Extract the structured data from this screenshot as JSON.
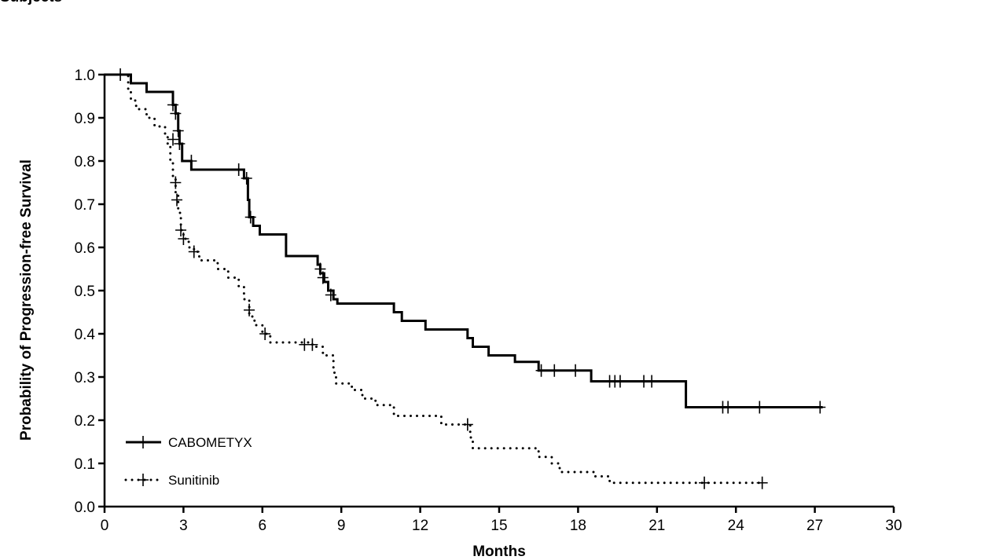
{
  "figure": {
    "title": "Subjects"
  },
  "chart_data": {
    "type": "line",
    "subtype": "kaplan-meier",
    "xlabel": "Months",
    "ylabel": "Probability of Progression-free Survival",
    "xlim": [
      0,
      30
    ],
    "ylim": [
      0,
      1.0
    ],
    "x_ticks": [
      0,
      3,
      6,
      9,
      12,
      15,
      18,
      21,
      24,
      27,
      30
    ],
    "y_ticks": [
      0.0,
      0.1,
      0.2,
      0.3,
      0.4,
      0.5,
      0.6,
      0.7,
      0.8,
      0.9,
      1.0
    ],
    "x_tick_labels": [
      "0",
      "3",
      "6",
      "9",
      "12",
      "15",
      "18",
      "21",
      "24",
      "27",
      "30"
    ],
    "y_tick_labels": [
      "0.0",
      "0.1",
      "0.2",
      "0.3",
      "0.4",
      "0.5",
      "0.6",
      "0.7",
      "0.8",
      "0.9",
      "1.0"
    ],
    "grid": false,
    "legend_position": "bottom-left",
    "series": [
      {
        "name": "CABOMETYX",
        "line_style": "solid",
        "color": "#000000",
        "steps": [
          [
            0,
            1.0
          ],
          [
            1.0,
            1.0
          ],
          [
            1.0,
            0.98
          ],
          [
            1.6,
            0.98
          ],
          [
            1.6,
            0.96
          ],
          [
            2.6,
            0.96
          ],
          [
            2.6,
            0.93
          ],
          [
            2.7,
            0.93
          ],
          [
            2.7,
            0.91
          ],
          [
            2.8,
            0.91
          ],
          [
            2.8,
            0.87
          ],
          [
            2.85,
            0.87
          ],
          [
            2.85,
            0.84
          ],
          [
            2.95,
            0.84
          ],
          [
            2.95,
            0.8
          ],
          [
            3.3,
            0.8
          ],
          [
            3.3,
            0.78
          ],
          [
            5.3,
            0.78
          ],
          [
            5.3,
            0.76
          ],
          [
            5.45,
            0.76
          ],
          [
            5.45,
            0.71
          ],
          [
            5.5,
            0.71
          ],
          [
            5.5,
            0.67
          ],
          [
            5.65,
            0.67
          ],
          [
            5.65,
            0.65
          ],
          [
            5.9,
            0.65
          ],
          [
            5.9,
            0.63
          ],
          [
            6.9,
            0.63
          ],
          [
            6.9,
            0.58
          ],
          [
            8.1,
            0.58
          ],
          [
            8.1,
            0.56
          ],
          [
            8.2,
            0.56
          ],
          [
            8.2,
            0.54
          ],
          [
            8.35,
            0.54
          ],
          [
            8.35,
            0.52
          ],
          [
            8.5,
            0.52
          ],
          [
            8.5,
            0.5
          ],
          [
            8.7,
            0.5
          ],
          [
            8.7,
            0.48
          ],
          [
            8.85,
            0.48
          ],
          [
            8.85,
            0.47
          ],
          [
            11.0,
            0.47
          ],
          [
            11.0,
            0.45
          ],
          [
            11.3,
            0.45
          ],
          [
            11.3,
            0.43
          ],
          [
            12.2,
            0.43
          ],
          [
            12.2,
            0.41
          ],
          [
            13.8,
            0.41
          ],
          [
            13.8,
            0.39
          ],
          [
            14.0,
            0.39
          ],
          [
            14.0,
            0.37
          ],
          [
            14.6,
            0.37
          ],
          [
            14.6,
            0.35
          ],
          [
            15.6,
            0.35
          ],
          [
            15.6,
            0.335
          ],
          [
            16.5,
            0.335
          ],
          [
            16.5,
            0.315
          ],
          [
            18.5,
            0.315
          ],
          [
            18.5,
            0.29
          ],
          [
            22.1,
            0.29
          ],
          [
            22.1,
            0.23
          ],
          [
            27.3,
            0.23
          ]
        ],
        "censored": [
          [
            0.6,
            1.0
          ],
          [
            2.6,
            0.93
          ],
          [
            2.7,
            0.91
          ],
          [
            2.8,
            0.87
          ],
          [
            2.85,
            0.84
          ],
          [
            3.3,
            0.8
          ],
          [
            5.1,
            0.78
          ],
          [
            5.4,
            0.76
          ],
          [
            5.55,
            0.67
          ],
          [
            8.2,
            0.55
          ],
          [
            8.3,
            0.53
          ],
          [
            8.6,
            0.49
          ],
          [
            16.6,
            0.315
          ],
          [
            17.1,
            0.315
          ],
          [
            17.9,
            0.315
          ],
          [
            19.2,
            0.29
          ],
          [
            19.4,
            0.29
          ],
          [
            19.6,
            0.29
          ],
          [
            20.5,
            0.29
          ],
          [
            20.8,
            0.29
          ],
          [
            23.5,
            0.23
          ],
          [
            23.7,
            0.23
          ],
          [
            24.9,
            0.23
          ],
          [
            27.2,
            0.23
          ]
        ]
      },
      {
        "name": "Sunitinib",
        "line_style": "dotted",
        "color": "#000000",
        "steps": [
          [
            0,
            1.0
          ],
          [
            0.9,
            1.0
          ],
          [
            0.9,
            0.96
          ],
          [
            1.0,
            0.96
          ],
          [
            1.0,
            0.94
          ],
          [
            1.2,
            0.94
          ],
          [
            1.2,
            0.92
          ],
          [
            1.6,
            0.92
          ],
          [
            1.6,
            0.9
          ],
          [
            1.9,
            0.9
          ],
          [
            1.9,
            0.88
          ],
          [
            2.3,
            0.88
          ],
          [
            2.3,
            0.86
          ],
          [
            2.4,
            0.86
          ],
          [
            2.4,
            0.84
          ],
          [
            2.5,
            0.84
          ],
          [
            2.5,
            0.8
          ],
          [
            2.6,
            0.8
          ],
          [
            2.6,
            0.76
          ],
          [
            2.7,
            0.76
          ],
          [
            2.7,
            0.72
          ],
          [
            2.8,
            0.72
          ],
          [
            2.8,
            0.68
          ],
          [
            2.9,
            0.68
          ],
          [
            2.9,
            0.64
          ],
          [
            3.0,
            0.64
          ],
          [
            3.0,
            0.62
          ],
          [
            3.2,
            0.62
          ],
          [
            3.2,
            0.6
          ],
          [
            3.4,
            0.6
          ],
          [
            3.4,
            0.59
          ],
          [
            3.6,
            0.59
          ],
          [
            3.6,
            0.57
          ],
          [
            4.3,
            0.57
          ],
          [
            4.3,
            0.55
          ],
          [
            4.7,
            0.55
          ],
          [
            4.7,
            0.53
          ],
          [
            5.1,
            0.53
          ],
          [
            5.1,
            0.51
          ],
          [
            5.3,
            0.51
          ],
          [
            5.3,
            0.48
          ],
          [
            5.5,
            0.48
          ],
          [
            5.5,
            0.44
          ],
          [
            5.7,
            0.44
          ],
          [
            5.7,
            0.42
          ],
          [
            6.0,
            0.42
          ],
          [
            6.0,
            0.4
          ],
          [
            6.3,
            0.4
          ],
          [
            6.3,
            0.38
          ],
          [
            7.9,
            0.38
          ],
          [
            7.9,
            0.37
          ],
          [
            8.3,
            0.37
          ],
          [
            8.3,
            0.35
          ],
          [
            8.7,
            0.35
          ],
          [
            8.7,
            0.31
          ],
          [
            8.8,
            0.31
          ],
          [
            8.8,
            0.285
          ],
          [
            9.4,
            0.285
          ],
          [
            9.4,
            0.27
          ],
          [
            9.8,
            0.27
          ],
          [
            9.8,
            0.25
          ],
          [
            10.3,
            0.25
          ],
          [
            10.3,
            0.235
          ],
          [
            11.0,
            0.235
          ],
          [
            11.0,
            0.21
          ],
          [
            12.8,
            0.21
          ],
          [
            12.8,
            0.19
          ],
          [
            13.9,
            0.19
          ],
          [
            13.9,
            0.16
          ],
          [
            14.0,
            0.16
          ],
          [
            14.0,
            0.135
          ],
          [
            16.5,
            0.135
          ],
          [
            16.5,
            0.115
          ],
          [
            17.0,
            0.115
          ],
          [
            17.0,
            0.1
          ],
          [
            17.3,
            0.1
          ],
          [
            17.3,
            0.08
          ],
          [
            18.6,
            0.08
          ],
          [
            18.6,
            0.07
          ],
          [
            19.2,
            0.07
          ],
          [
            19.2,
            0.055
          ],
          [
            25.0,
            0.055
          ]
        ],
        "censored": [
          [
            2.6,
            0.85
          ],
          [
            2.7,
            0.75
          ],
          [
            2.75,
            0.71
          ],
          [
            2.9,
            0.64
          ],
          [
            3.0,
            0.62
          ],
          [
            3.4,
            0.59
          ],
          [
            5.5,
            0.455
          ],
          [
            6.1,
            0.4
          ],
          [
            7.6,
            0.375
          ],
          [
            7.9,
            0.375
          ],
          [
            13.8,
            0.19
          ],
          [
            22.8,
            0.055
          ],
          [
            25.0,
            0.055
          ]
        ]
      }
    ]
  }
}
